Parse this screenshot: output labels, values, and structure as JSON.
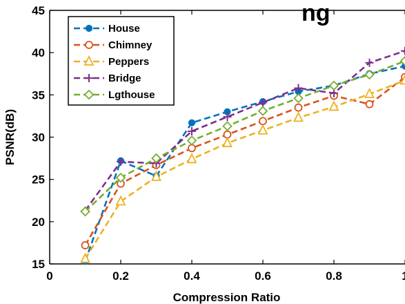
{
  "chart_data": {
    "type": "line",
    "title": "",
    "title_visible_fragment": "ng",
    "xlabel": "Compression Ratio",
    "ylabel": "PSNR(dB)",
    "xlim": [
      0,
      1
    ],
    "ylim": [
      15,
      45
    ],
    "xticks": [
      "0",
      "0.2",
      "0.4",
      "0.6",
      "0.8",
      "1"
    ],
    "yticks": [
      "15",
      "20",
      "25",
      "30",
      "35",
      "40",
      "45"
    ],
    "x": [
      0.1,
      0.2,
      0.3,
      0.4,
      0.5,
      0.6,
      0.7,
      0.8,
      0.9,
      1.0
    ],
    "grid": false,
    "legend_position": "top-left",
    "series": [
      {
        "name": "House",
        "color": "#0072bd",
        "marker": "circle-filled",
        "values": [
          15.3,
          27.2,
          25.4,
          31.7,
          33.0,
          34.2,
          35.4,
          36.1,
          37.5,
          38.4
        ]
      },
      {
        "name": "Chimney",
        "color": "#d95319",
        "marker": "circle-open",
        "values": [
          17.2,
          24.5,
          26.7,
          28.7,
          30.3,
          31.9,
          33.5,
          34.9,
          33.9,
          37.1
        ]
      },
      {
        "name": "Peppers",
        "color": "#edb120",
        "marker": "triangle",
        "values": [
          15.6,
          22.4,
          25.3,
          27.4,
          29.3,
          30.8,
          32.3,
          33.6,
          35.1,
          36.7
        ]
      },
      {
        "name": "Bridge",
        "color": "#7e2f8e",
        "marker": "plus",
        "values": [
          21.3,
          27.1,
          26.9,
          30.7,
          32.4,
          34.1,
          35.8,
          35.2,
          38.8,
          40.2
        ]
      },
      {
        "name": "Lgthouse",
        "color": "#77ac30",
        "marker": "diamond",
        "values": [
          21.2,
          25.2,
          27.5,
          29.6,
          31.3,
          33.1,
          34.6,
          36.1,
          37.4,
          39.0
        ]
      }
    ]
  }
}
